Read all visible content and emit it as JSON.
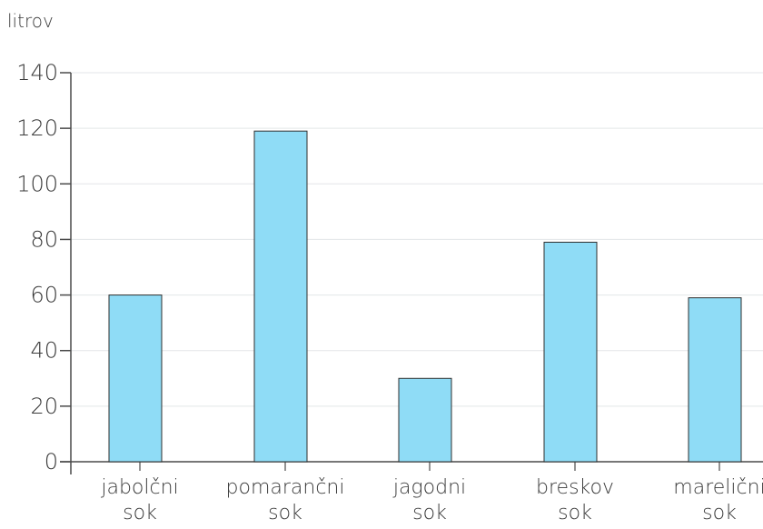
{
  "chart_data": {
    "type": "bar",
    "title": "",
    "xlabel": "",
    "ylabel": "litrov",
    "categories": [
      [
        "jabolčni",
        "sok"
      ],
      [
        "pomarančni",
        "sok"
      ],
      [
        "jagodni",
        "sok"
      ],
      [
        "breskov",
        "sok"
      ],
      [
        "marelični",
        "sok"
      ]
    ],
    "values": [
      60,
      119,
      30,
      79,
      59
    ],
    "ylim": [
      0,
      140
    ],
    "yticks": [
      0,
      20,
      40,
      60,
      80,
      100,
      120,
      140
    ],
    "grid": true,
    "legend": "none"
  },
  "colors": {
    "bar_fill": "#8fdcf6",
    "bar_stroke": "#2f2f2f",
    "axis": "#4a4a4a",
    "grid": "#e3e6e8",
    "text": "#3a3a3a"
  }
}
